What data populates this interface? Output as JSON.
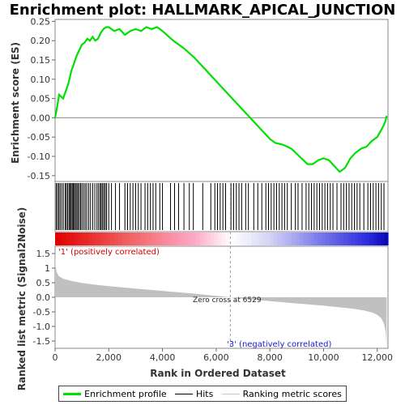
{
  "figure": {
    "title": "Enrichment plot: HALLMARK_APICAL_JUNCTION",
    "colors": {
      "enrichment_line": "#00e000",
      "hits": "#000000",
      "metric_fill": "#c0c0c0",
      "positive_text": "#d00000",
      "negative_text": "#1a1ad0"
    }
  },
  "chart_data": [
    {
      "type": "line",
      "name": "enrichment-profile",
      "title": "Enrichment plot: HALLMARK_APICAL_JUNCTION",
      "ylabel": "Enrichment score (ES)",
      "ylim": [
        -0.165,
        0.255
      ],
      "yticks": [
        0.25,
        0.2,
        0.15,
        0.1,
        0.05,
        0.0,
        -0.05,
        -0.1,
        -0.15
      ],
      "ytick_labels": [
        "0.25",
        "0.20",
        "0.15",
        "0.10",
        "0.05",
        "0.00",
        "-0.05",
        "-0.10",
        "-0.15"
      ],
      "xlim": [
        0,
        12400
      ],
      "grid": false,
      "x": [
        0,
        80,
        150,
        300,
        400,
        500,
        600,
        700,
        800,
        900,
        1000,
        1100,
        1200,
        1300,
        1400,
        1500,
        1600,
        1700,
        1800,
        1900,
        2000,
        2200,
        2400,
        2600,
        2800,
        3000,
        3200,
        3400,
        3600,
        3800,
        4000,
        4400,
        4800,
        5200,
        5600,
        6000,
        6400,
        6800,
        7200,
        7600,
        8000,
        8200,
        8500,
        8800,
        9100,
        9400,
        9600,
        9800,
        10000,
        10200,
        10400,
        10600,
        10800,
        11000,
        11200,
        11400,
        11600,
        11800,
        12000,
        12200,
        12300,
        12350
      ],
      "y": [
        0.0,
        0.03,
        0.06,
        0.05,
        0.07,
        0.09,
        0.12,
        0.14,
        0.16,
        0.175,
        0.19,
        0.195,
        0.205,
        0.2,
        0.21,
        0.2,
        0.205,
        0.22,
        0.23,
        0.235,
        0.235,
        0.225,
        0.23,
        0.215,
        0.225,
        0.23,
        0.225,
        0.235,
        0.23,
        0.235,
        0.225,
        0.2,
        0.18,
        0.155,
        0.125,
        0.095,
        0.065,
        0.035,
        0.005,
        -0.025,
        -0.055,
        -0.065,
        -0.07,
        -0.08,
        -0.1,
        -0.12,
        -0.12,
        -0.11,
        -0.105,
        -0.11,
        -0.125,
        -0.14,
        -0.13,
        -0.105,
        -0.09,
        -0.08,
        -0.075,
        -0.06,
        -0.05,
        -0.025,
        -0.01,
        0.005
      ]
    },
    {
      "type": "scatter",
      "name": "hits",
      "xlim": [
        0,
        12400
      ],
      "x": [
        40,
        90,
        140,
        190,
        250,
        310,
        380,
        420,
        470,
        520,
        560,
        600,
        640,
        680,
        720,
        760,
        810,
        850,
        900,
        950,
        1000,
        1060,
        1120,
        1180,
        1250,
        1320,
        1400,
        1480,
        1560,
        1620,
        1680,
        1720,
        1770,
        1820,
        1870,
        1920,
        2000,
        2100,
        2250,
        2400,
        2600,
        2700,
        2800,
        2900,
        3000,
        3100,
        3200,
        3350,
        3450,
        3550,
        3650,
        3750,
        3900,
        4000,
        4300,
        4450,
        4600,
        4800,
        5000,
        5150,
        5500,
        5800,
        5950,
        6050,
        6150,
        6250,
        6350,
        6550,
        6650,
        6750,
        6850,
        6950,
        7100,
        7200,
        7400,
        7550,
        7700,
        7850,
        7950,
        8050,
        8150,
        8250,
        8350,
        8450,
        8550,
        8650,
        8800,
        8950,
        9050,
        9200,
        9350,
        9450,
        9550,
        9650,
        9750,
        9850,
        9950,
        10050,
        10150,
        10250,
        10350,
        10500,
        10650,
        10750,
        10850,
        10950,
        11050,
        11150,
        11250,
        11350,
        11500,
        11650,
        11750,
        11850,
        11950,
        12050,
        12150,
        12250
      ]
    },
    {
      "type": "area",
      "name": "ranked-list-metric",
      "xlabel": "Rank in Ordered Dataset",
      "ylabel": "Ranked list metric (Signal2Noise)",
      "ylim": [
        -1.75,
        1.75
      ],
      "yticks": [
        1.5,
        1.0,
        0.5,
        0.0,
        -0.5,
        -1.0,
        -1.5
      ],
      "ytick_labels": [
        "1.5",
        "1",
        "0.5",
        "0.0",
        "-0.5",
        "-1.0",
        "-1.5"
      ],
      "xlim": [
        0,
        12400
      ],
      "xticks": [
        0,
        2000,
        4000,
        6000,
        8000,
        10000,
        12000
      ],
      "xtick_labels": [
        "0",
        "2,000",
        "4,000",
        "6,000",
        "8,000",
        "10,000",
        "12,000"
      ],
      "x": [
        0,
        20,
        60,
        150,
        300,
        600,
        1000,
        1500,
        2000,
        3000,
        4000,
        5000,
        6000,
        6529,
        7000,
        8000,
        9000,
        10000,
        11000,
        11500,
        11800,
        12000,
        12150,
        12250,
        12320,
        12350
      ],
      "y": [
        1.65,
        1.05,
        0.85,
        0.72,
        0.64,
        0.56,
        0.49,
        0.43,
        0.38,
        0.3,
        0.22,
        0.14,
        0.05,
        0.0,
        -0.05,
        -0.13,
        -0.21,
        -0.29,
        -0.38,
        -0.45,
        -0.52,
        -0.6,
        -0.72,
        -0.9,
        -1.2,
        -1.7
      ],
      "annotations": {
        "positive": "'1' (positively correlated)",
        "zero_cross": "Zero cross at 6529",
        "negative": "'3' (negatively correlated)"
      },
      "zero_cross": 6529
    }
  ],
  "legend": {
    "items": [
      {
        "label": "Enrichment profile",
        "icon": "green-line"
      },
      {
        "label": "Hits",
        "icon": "black-line"
      },
      {
        "label": "Ranking metric scores",
        "icon": "gray-line"
      }
    ]
  }
}
